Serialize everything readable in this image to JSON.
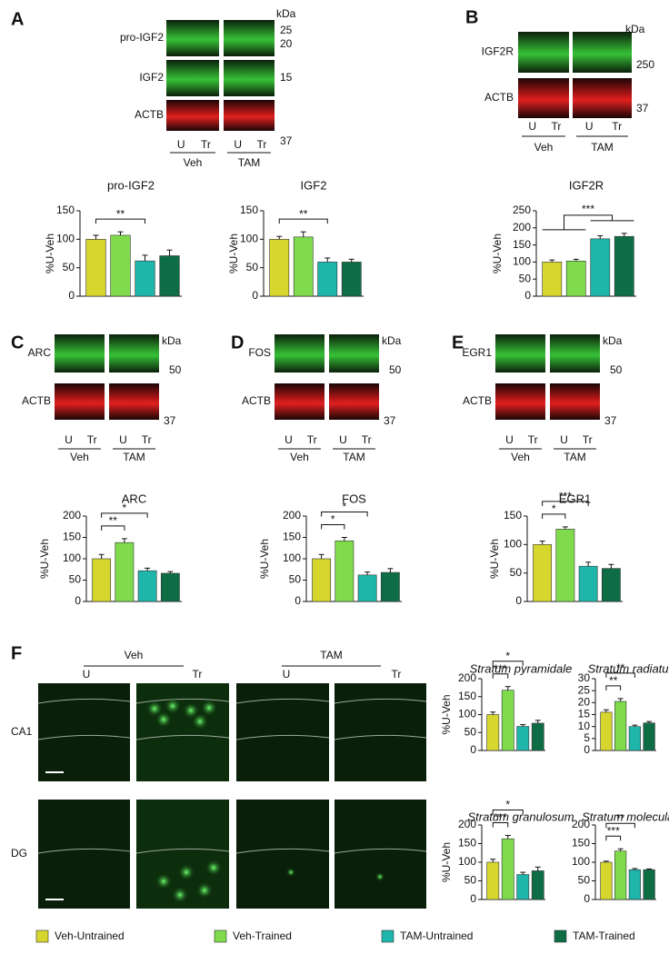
{
  "figure": {
    "blots": [
      {
        "panel": "A",
        "rows": [
          "pro-IGF2",
          "IGF2",
          "ACTB"
        ],
        "kda_unit": "kDa",
        "kda": [
          25,
          20,
          15,
          37
        ],
        "lanes": [
          "U",
          "Tr",
          "U",
          "Tr"
        ],
        "groups": [
          "Veh",
          "TAM"
        ]
      },
      {
        "panel": "B",
        "rows": [
          "IGF2R",
          "ACTB"
        ],
        "kda_unit": "kDa",
        "kda": [
          250,
          37
        ],
        "lanes": [
          "U",
          "Tr",
          "U",
          "Tr"
        ],
        "groups": [
          "Veh",
          "TAM"
        ]
      },
      {
        "panel": "C",
        "rows": [
          "ARC",
          "ACTB"
        ],
        "kda_unit": "kDa",
        "kda": [
          50,
          37
        ],
        "lanes": [
          "U",
          "Tr",
          "U",
          "Tr"
        ],
        "groups": [
          "Veh",
          "TAM"
        ]
      },
      {
        "panel": "D",
        "rows": [
          "FOS",
          "ACTB"
        ],
        "kda_unit": "kDa",
        "kda": [
          50,
          37
        ],
        "lanes": [
          "U",
          "Tr",
          "U",
          "Tr"
        ],
        "groups": [
          "Veh",
          "TAM"
        ]
      },
      {
        "panel": "E",
        "rows": [
          "EGR1",
          "ACTB"
        ],
        "kda_unit": "kDa",
        "kda": [
          50,
          37
        ],
        "lanes": [
          "U",
          "Tr",
          "U",
          "Tr"
        ],
        "groups": [
          "Veh",
          "TAM"
        ]
      }
    ],
    "microscopy": {
      "panel": "F",
      "groups": [
        "Veh",
        "TAM"
      ],
      "lanes": [
        "U",
        "Tr",
        "U",
        "Tr"
      ],
      "rows": [
        "CA1",
        "DG"
      ]
    },
    "legend": [
      {
        "name": "Veh-Untrained",
        "color": "#d6d62e"
      },
      {
        "name": "Veh-Trained",
        "color": "#7fdb4c"
      },
      {
        "name": "TAM-Untrained",
        "color": "#1eb5aa"
      },
      {
        "name": "TAM-Trained",
        "color": "#0e6d45"
      }
    ]
  },
  "chart_data": [
    {
      "type": "bar",
      "title": "pro-IGF2",
      "ylabel": "%U-Veh",
      "values": [
        100,
        107,
        62,
        71
      ],
      "errors": [
        7,
        6,
        10,
        10
      ],
      "ylim": [
        0,
        150
      ],
      "yticks": [
        0,
        50,
        100,
        150
      ],
      "annotations": [
        {
          "label": "**",
          "from": 0,
          "to": 2
        }
      ]
    },
    {
      "type": "bar",
      "title": "IGF2",
      "ylabel": "%U-Veh",
      "values": [
        100,
        104,
        60,
        60
      ],
      "errors": [
        5,
        9,
        7,
        5
      ],
      "ylim": [
        0,
        150
      ],
      "yticks": [
        0,
        50,
        100,
        150
      ],
      "annotations": [
        {
          "label": "**",
          "from": 0,
          "to": 2
        }
      ]
    },
    {
      "type": "bar",
      "title": "IGF2R",
      "ylabel": "%U-Veh",
      "values": [
        100,
        103,
        168,
        175
      ],
      "errors": [
        6,
        5,
        9,
        9
      ],
      "ylim": [
        0,
        250
      ],
      "yticks": [
        0,
        50,
        100,
        150,
        200,
        250
      ],
      "annotations": [
        {
          "label": "***",
          "from": [
            0,
            1
          ],
          "to": [
            2,
            3
          ]
        }
      ]
    },
    {
      "type": "bar",
      "title": "ARC",
      "ylabel": "%U-Veh",
      "values": [
        100,
        138,
        72,
        66
      ],
      "errors": [
        10,
        9,
        6,
        4
      ],
      "ylim": [
        0,
        200
      ],
      "yticks": [
        0,
        50,
        100,
        150,
        200
      ],
      "annotations": [
        {
          "label": "**",
          "from": 0,
          "to": 1
        },
        {
          "label": "*",
          "from": 0,
          "to": 2
        }
      ]
    },
    {
      "type": "bar",
      "title": "FOS",
      "ylabel": "%U-Veh",
      "values": [
        100,
        142,
        62,
        68
      ],
      "errors": [
        10,
        8,
        7,
        9
      ],
      "ylim": [
        0,
        200
      ],
      "yticks": [
        0,
        50,
        100,
        150,
        200
      ],
      "annotations": [
        {
          "label": "*",
          "from": 0,
          "to": 1
        },
        {
          "label": "*",
          "from": 0,
          "to": 2
        }
      ]
    },
    {
      "type": "bar",
      "title": "EGR1",
      "ylabel": "%U-Veh",
      "values": [
        100,
        127,
        62,
        58
      ],
      "errors": [
        6,
        4,
        7,
        7
      ],
      "ylim": [
        0,
        150
      ],
      "yticks": [
        0,
        50,
        100,
        150
      ],
      "annotations": [
        {
          "label": "*",
          "from": 0,
          "to": 1
        },
        {
          "label": "***",
          "from": 0,
          "to": 2
        }
      ]
    },
    {
      "type": "bar",
      "title": "Stratum pyramidale",
      "ylabel": "%U-Veh",
      "values": [
        100,
        168,
        67,
        76
      ],
      "errors": [
        7,
        10,
        5,
        8
      ],
      "ylim": [
        0,
        200
      ],
      "yticks": [
        0,
        50,
        100,
        150,
        200
      ],
      "annotations": [
        {
          "label": "***",
          "from": 0,
          "to": 1
        },
        {
          "label": "*",
          "from": 0,
          "to": 2
        }
      ]
    },
    {
      "type": "bar",
      "title": "Stratum radiatum",
      "values": [
        16,
        20.5,
        10,
        11.5
      ],
      "errors": [
        1,
        1.2,
        0.6,
        0.6
      ],
      "ylim": [
        0,
        30
      ],
      "yticks": [
        0,
        5,
        10,
        15,
        20,
        25,
        30
      ],
      "annotations": [
        {
          "label": "**",
          "from": 0,
          "to": 1
        },
        {
          "label": "**",
          "from": 0,
          "to": 2
        }
      ]
    },
    {
      "type": "bar",
      "title": "Stratum granulosum",
      "ylabel": "%U-Veh",
      "values": [
        100,
        163,
        67,
        77
      ],
      "errors": [
        8,
        9,
        6,
        10
      ],
      "ylim": [
        0,
        200
      ],
      "yticks": [
        0,
        50,
        100,
        150,
        200
      ],
      "annotations": [
        {
          "label": "***",
          "from": 0,
          "to": 1
        },
        {
          "label": "*",
          "from": 0,
          "to": 2
        }
      ]
    },
    {
      "type": "bar",
      "title": "Stratum moleculare",
      "values": [
        100,
        130,
        80,
        80
      ],
      "errors": [
        3,
        6,
        3,
        2
      ],
      "ylim": [
        0,
        200
      ],
      "yticks": [
        0,
        50,
        100,
        150,
        200
      ],
      "annotations": [
        {
          "label": "***",
          "from": 0,
          "to": 1
        },
        {
          "label": "**",
          "from": 0,
          "to": 2
        }
      ]
    }
  ]
}
